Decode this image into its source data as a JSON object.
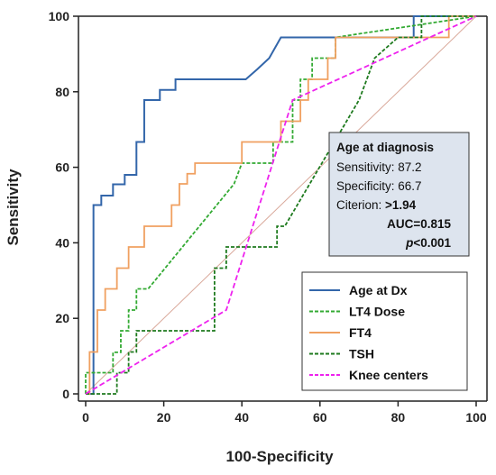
{
  "chart_data": {
    "type": "line",
    "xlabel": "100-Specificity",
    "ylabel": "Sensitivity",
    "xlim": [
      0,
      100
    ],
    "ylim": [
      0,
      100
    ],
    "x_ticks": [
      "0",
      "20",
      "40",
      "60",
      "80",
      "100"
    ],
    "y_ticks": [
      "0",
      "20",
      "40",
      "60",
      "80",
      "100"
    ],
    "grid": false,
    "legend_position": "bottom-right",
    "diagonal_reference_color": "#d9a89a",
    "annotation": {
      "title": "Age at diagnosis",
      "sensitivity": "Sensitivity: 87.2",
      "specificity": "Specificity: 66.7",
      "criterion_label": "Citerion: ",
      "criterion_value": ">1.94",
      "auc": "AUC=0.815",
      "p_label": "p",
      "p_value": "<0.001"
    },
    "series": [
      {
        "name": "Age at Dx",
        "color": "#3366aa",
        "style": "solid",
        "x": [
          0,
          2,
          2,
          4,
          4,
          7,
          7,
          10,
          10,
          13,
          13,
          15,
          15,
          19,
          19,
          23,
          23,
          26,
          26,
          30,
          30,
          41,
          44,
          47,
          50,
          50,
          84,
          84,
          100
        ],
        "y": [
          0,
          0,
          50,
          50,
          52.5,
          52.5,
          55.5,
          55.5,
          58,
          58,
          66.7,
          66.7,
          77.8,
          77.8,
          80.5,
          80.5,
          83.3,
          83.3,
          83.3,
          83.3,
          83.3,
          83.3,
          86,
          88.9,
          94.4,
          94.4,
          94.4,
          100,
          100
        ]
      },
      {
        "name": "LT4 Dose",
        "color": "#33aa33",
        "style": "dashed",
        "x": [
          0,
          0,
          7,
          7,
          9,
          9,
          11,
          11,
          13,
          13,
          16,
          16,
          38,
          38,
          40,
          40,
          48,
          48,
          53,
          53,
          55,
          55,
          58,
          58,
          64,
          64,
          100
        ],
        "y": [
          0,
          5.6,
          5.6,
          11,
          11,
          16.7,
          16.7,
          22.2,
          22.2,
          27.8,
          27.8,
          27.8,
          55.6,
          55.6,
          61.1,
          61.1,
          61.1,
          66.7,
          66.7,
          77.8,
          77.8,
          83.3,
          83.3,
          88.9,
          88.9,
          94.4,
          100
        ]
      },
      {
        "name": "FT4",
        "color": "#f0a060",
        "style": "solid",
        "x": [
          0,
          1,
          1,
          3,
          3,
          5,
          5,
          8,
          8,
          11,
          11,
          15,
          15,
          19,
          19,
          22,
          22,
          24,
          24,
          26,
          26,
          28,
          28,
          32,
          32,
          36,
          36,
          40,
          40,
          50,
          50,
          55,
          55,
          57,
          57,
          62,
          62,
          64,
          64,
          68,
          68,
          93,
          93,
          100
        ],
        "y": [
          0,
          0,
          11.1,
          11.1,
          22.2,
          22.2,
          27.8,
          27.8,
          33.3,
          33.3,
          38.9,
          38.9,
          44.4,
          44.4,
          44.4,
          44.4,
          50,
          50,
          55.6,
          55.6,
          58.3,
          58.3,
          61.1,
          61.1,
          61.1,
          61.1,
          61.1,
          61.1,
          66.7,
          66.7,
          72.2,
          72.2,
          77.8,
          77.8,
          83.3,
          83.3,
          88.9,
          88.9,
          94.4,
          94.4,
          94.4,
          94.4,
          100,
          100
        ]
      },
      {
        "name": "TSH",
        "color": "#1e7a1e",
        "style": "dashed",
        "x": [
          0,
          8,
          8,
          11,
          11,
          13,
          13,
          15,
          15,
          33,
          33,
          34,
          34,
          36,
          36,
          49,
          49,
          51,
          51,
          70,
          70,
          72,
          72,
          74,
          74,
          80,
          80,
          86,
          86,
          100
        ],
        "y": [
          0,
          0,
          5.6,
          5.6,
          11.1,
          11.1,
          16.7,
          16.7,
          16.7,
          16.7,
          33.3,
          33.3,
          33.3,
          33.3,
          38.9,
          38.9,
          44.4,
          44.4,
          44.4,
          77.8,
          77.8,
          83.3,
          83.3,
          88.9,
          88.9,
          94.4,
          94.4,
          94.4,
          100,
          100
        ]
      },
      {
        "name": "Knee centers",
        "color": "#ee22ee",
        "style": "dashed",
        "x": [
          0,
          36,
          53,
          100
        ],
        "y": [
          0,
          22.2,
          77.8,
          100
        ]
      }
    ]
  }
}
